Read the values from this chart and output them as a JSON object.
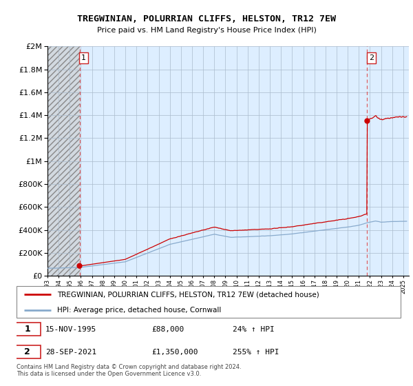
{
  "title": "TREGWINIAN, POLURRIAN CLIFFS, HELSTON, TR12 7EW",
  "subtitle": "Price paid vs. HM Land Registry's House Price Index (HPI)",
  "legend_label1": "TREGWINIAN, POLURRIAN CLIFFS, HELSTON, TR12 7EW (detached house)",
  "legend_label2": "HPI: Average price, detached house, Cornwall",
  "annotation1_label": "1",
  "annotation1_date": "15-NOV-1995",
  "annotation1_price": "£88,000",
  "annotation1_hpi": "24% ↑ HPI",
  "annotation2_label": "2",
  "annotation2_date": "28-SEP-2021",
  "annotation2_price": "£1,350,000",
  "annotation2_hpi": "255% ↑ HPI",
  "footer": "Contains HM Land Registry data © Crown copyright and database right 2024.\nThis data is licensed under the Open Government Licence v3.0.",
  "ylim": [
    0,
    2000000
  ],
  "xlim_start": 1993.0,
  "xlim_end": 2025.5,
  "sale1_x": 1995.88,
  "sale1_y": 88000,
  "sale2_x": 2021.75,
  "sale2_y": 1350000,
  "background_main": "#ddeeff",
  "background_pre": "#cccccc",
  "grid_color": "#aabbcc",
  "line_color_red": "#cc0000",
  "line_color_blue": "#88aacc",
  "vline_color": "#dd4444",
  "dot_color": "#cc0000",
  "hatch_color": "#999999"
}
